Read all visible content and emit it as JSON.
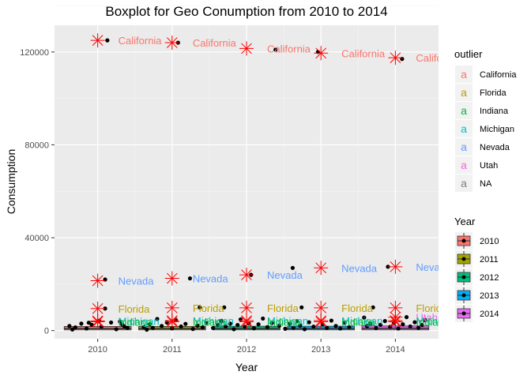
{
  "chart_data": {
    "type": "boxplot",
    "title": "Boxplot for Geo Conumption from 2010 to 2014",
    "xlabel": "Year",
    "ylabel": "Consumption",
    "x_range": [
      2009.42,
      2010.58,
      2014.58
    ],
    "xlim": [
      2009.42,
      2014.58
    ],
    "ylim": [
      -3500,
      131500
    ],
    "x_ticks": [
      2010,
      2011,
      2012,
      2013,
      2014
    ],
    "x_tick_labels": [
      "2010",
      "2011",
      "2012",
      "2013",
      "2014"
    ],
    "y_ticks": [
      0,
      40000,
      80000,
      120000
    ],
    "y_tick_labels": [
      "0",
      "40000",
      "80000",
      "120000"
    ],
    "grid": true,
    "boxes": [
      {
        "year": 2010,
        "q1": 300,
        "median": 900,
        "q3": 1800,
        "color": "#F8766D"
      },
      {
        "year": 2011,
        "q1": 300,
        "median": 900,
        "q3": 1800,
        "color": "#A3A500"
      },
      {
        "year": 2012,
        "q1": 300,
        "median": 950,
        "q3": 1900,
        "color": "#00BF7D"
      },
      {
        "year": 2013,
        "q1": 300,
        "median": 950,
        "q3": 1900,
        "color": "#00B0F6"
      },
      {
        "year": 2014,
        "q1": 300,
        "median": 1000,
        "q3": 2000,
        "color": "#E76BF3"
      }
    ],
    "outliers": [
      {
        "year": 2010,
        "value": 125000,
        "state": "California"
      },
      {
        "year": 2010,
        "value": 21500,
        "state": "Nevada"
      },
      {
        "year": 2010,
        "value": 9500,
        "state": "Florida"
      },
      {
        "year": 2010,
        "value": 4200,
        "state": "Michigan"
      },
      {
        "year": 2010,
        "value": 3800,
        "state": "Indiana"
      },
      {
        "year": 2011,
        "value": 124000,
        "state": "California"
      },
      {
        "year": 2011,
        "value": 22500,
        "state": "Nevada"
      },
      {
        "year": 2011,
        "value": 9800,
        "state": "Florida"
      },
      {
        "year": 2011,
        "value": 4300,
        "state": "Michigan"
      },
      {
        "year": 2011,
        "value": 3800,
        "state": "Indiana"
      },
      {
        "year": 2012,
        "value": 121500,
        "state": "California"
      },
      {
        "year": 2012,
        "value": 24000,
        "state": "Nevada"
      },
      {
        "year": 2012,
        "value": 9800,
        "state": "Florida"
      },
      {
        "year": 2012,
        "value": 4300,
        "state": "Michigan"
      },
      {
        "year": 2012,
        "value": 3800,
        "state": "Indiana"
      },
      {
        "year": 2013,
        "value": 119500,
        "state": "California"
      },
      {
        "year": 2013,
        "value": 27000,
        "state": "Nevada"
      },
      {
        "year": 2013,
        "value": 9800,
        "state": "Florida"
      },
      {
        "year": 2013,
        "value": 4300,
        "state": "Michigan"
      },
      {
        "year": 2013,
        "value": 3800,
        "state": "Indiana"
      },
      {
        "year": 2014,
        "value": 117500,
        "state": "California"
      },
      {
        "year": 2014,
        "value": 27500,
        "state": "Nevada"
      },
      {
        "year": 2014,
        "value": 9800,
        "state": "Florida"
      },
      {
        "year": 2014,
        "value": 5800,
        "state": "Utah"
      },
      {
        "year": 2014,
        "value": 4300,
        "state": "Michigan"
      },
      {
        "year": 2014,
        "value": 3800,
        "state": "Indiana"
      }
    ],
    "jitter_points": [
      {
        "x": 2010.13,
        "y": 125000
      },
      {
        "x": 2011.08,
        "y": 124000
      },
      {
        "x": 2012.39,
        "y": 121000
      },
      {
        "x": 2012.96,
        "y": 120000
      },
      {
        "x": 2014.09,
        "y": 117000
      },
      {
        "x": 2010.1,
        "y": 22000
      },
      {
        "x": 2011.24,
        "y": 22500
      },
      {
        "x": 2012.06,
        "y": 24000
      },
      {
        "x": 2012.62,
        "y": 27000
      },
      {
        "x": 2013.9,
        "y": 27500
      },
      {
        "x": 2010.1,
        "y": 9500
      },
      {
        "x": 2011.37,
        "y": 10000
      },
      {
        "x": 2011.7,
        "y": 10000
      },
      {
        "x": 2012.74,
        "y": 10000
      },
      {
        "x": 2013.7,
        "y": 10000
      },
      {
        "x": 2009.62,
        "y": 2000
      },
      {
        "x": 2009.7,
        "y": 1400
      },
      {
        "x": 2009.78,
        "y": 3000
      },
      {
        "x": 2009.85,
        "y": 900
      },
      {
        "x": 2009.92,
        "y": 2500
      },
      {
        "x": 2010.02,
        "y": 4200
      },
      {
        "x": 2010.05,
        "y": 1700
      },
      {
        "x": 2010.18,
        "y": 3500
      },
      {
        "x": 2010.25,
        "y": 600
      },
      {
        "x": 2010.33,
        "y": 2600
      },
      {
        "x": 2010.4,
        "y": 1200
      },
      {
        "x": 2009.66,
        "y": 500
      },
      {
        "x": 2009.88,
        "y": 3400
      },
      {
        "x": 2010.3,
        "y": 3900
      },
      {
        "x": 2010.36,
        "y": 1800
      },
      {
        "x": 2010.62,
        "y": 1500
      },
      {
        "x": 2010.66,
        "y": 400
      },
      {
        "x": 2010.7,
        "y": 2800
      },
      {
        "x": 2010.74,
        "y": 1200
      },
      {
        "x": 2010.8,
        "y": 5000
      },
      {
        "x": 2010.86,
        "y": 2000
      },
      {
        "x": 2010.93,
        "y": 3500
      },
      {
        "x": 2011.0,
        "y": 1000
      },
      {
        "x": 2011.05,
        "y": 4500
      },
      {
        "x": 2011.12,
        "y": 1800
      },
      {
        "x": 2011.18,
        "y": 2900
      },
      {
        "x": 2011.28,
        "y": 700
      },
      {
        "x": 2011.34,
        "y": 2200
      },
      {
        "x": 2011.41,
        "y": 1400
      },
      {
        "x": 2011.46,
        "y": 3200
      },
      {
        "x": 2011.55,
        "y": 1100
      },
      {
        "x": 2011.62,
        "y": 2500
      },
      {
        "x": 2011.66,
        "y": 4200
      },
      {
        "x": 2011.72,
        "y": 1800
      },
      {
        "x": 2011.78,
        "y": 3000
      },
      {
        "x": 2011.83,
        "y": 600
      },
      {
        "x": 2011.88,
        "y": 2400
      },
      {
        "x": 2011.92,
        "y": 4800
      },
      {
        "x": 2011.98,
        "y": 1600
      },
      {
        "x": 2012.03,
        "y": 3100
      },
      {
        "x": 2012.1,
        "y": 1000
      },
      {
        "x": 2012.16,
        "y": 2700
      },
      {
        "x": 2012.22,
        "y": 5200
      },
      {
        "x": 2012.28,
        "y": 1500
      },
      {
        "x": 2012.34,
        "y": 3300
      },
      {
        "x": 2012.44,
        "y": 2100
      },
      {
        "x": 2012.52,
        "y": 800
      },
      {
        "x": 2012.58,
        "y": 2900
      },
      {
        "x": 2012.63,
        "y": 1300
      },
      {
        "x": 2012.68,
        "y": 4000
      },
      {
        "x": 2012.72,
        "y": 2200
      },
      {
        "x": 2012.78,
        "y": 600
      },
      {
        "x": 2012.84,
        "y": 3600
      },
      {
        "x": 2012.9,
        "y": 1700
      },
      {
        "x": 2013.02,
        "y": 2800
      },
      {
        "x": 2013.08,
        "y": 1200
      },
      {
        "x": 2013.14,
        "y": 4300
      },
      {
        "x": 2013.2,
        "y": 2000
      },
      {
        "x": 2013.26,
        "y": 900
      },
      {
        "x": 2013.32,
        "y": 3400
      },
      {
        "x": 2013.38,
        "y": 1500
      },
      {
        "x": 2013.58,
        "y": 5600
      },
      {
        "x": 2013.62,
        "y": 1900
      },
      {
        "x": 2013.66,
        "y": 3000
      },
      {
        "x": 2013.74,
        "y": 1100
      },
      {
        "x": 2013.8,
        "y": 2500
      },
      {
        "x": 2013.86,
        "y": 4100
      },
      {
        "x": 2013.93,
        "y": 1600
      },
      {
        "x": 2013.98,
        "y": 3300
      },
      {
        "x": 2014.04,
        "y": 900
      },
      {
        "x": 2014.1,
        "y": 2700
      },
      {
        "x": 2014.15,
        "y": 5800
      },
      {
        "x": 2014.2,
        "y": 1800
      },
      {
        "x": 2014.26,
        "y": 3600
      },
      {
        "x": 2014.31,
        "y": 1200
      },
      {
        "x": 2014.36,
        "y": 2400
      },
      {
        "x": 2014.4,
        "y": 4500
      }
    ],
    "outlier_label_colors": {
      "California": "#F8766D",
      "Florida": "#B79F00",
      "Indiana": "#00BA38",
      "Michigan": "#00BFC4",
      "Nevada": "#619CFF",
      "Utah": "#F564E3",
      "NA": "#7F7F7F"
    },
    "legend_outlier": {
      "title": "outlier",
      "glyph": "a",
      "items": [
        {
          "label": "California",
          "color": "#F8766D"
        },
        {
          "label": "Florida",
          "color": "#B79F00"
        },
        {
          "label": "Indiana",
          "color": "#00BA38"
        },
        {
          "label": "Michigan",
          "color": "#00BFC4"
        },
        {
          "label": "Nevada",
          "color": "#619CFF"
        },
        {
          "label": "Utah",
          "color": "#F564E3"
        },
        {
          "label": "NA",
          "color": "#7F7F7F"
        }
      ]
    },
    "legend_year": {
      "title": "Year",
      "items": [
        {
          "label": "2010",
          "color": "#F8766D"
        },
        {
          "label": "2011",
          "color": "#A3A500"
        },
        {
          "label": "2012",
          "color": "#00BF7D"
        },
        {
          "label": "2013",
          "color": "#00B0F6"
        },
        {
          "label": "2014",
          "color": "#E76BF3"
        }
      ]
    }
  }
}
